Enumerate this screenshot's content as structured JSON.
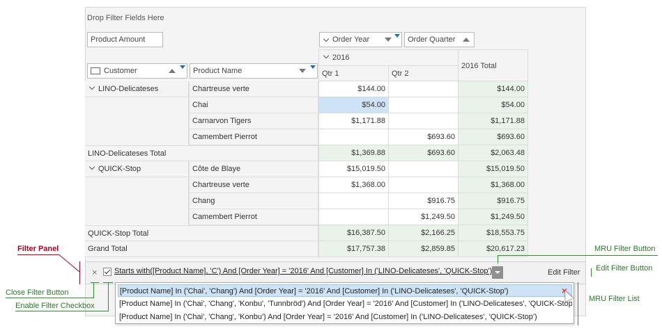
{
  "header_area": {
    "drop_filter_text": "Drop Filter Fields Here",
    "data_field": "Product Amount",
    "column_fields": [
      "Order Year",
      "Order Quarter"
    ],
    "row_fields": [
      "Customer",
      "Product Name"
    ]
  },
  "columns": {
    "year": "2016",
    "quarters": [
      "Qtr 1",
      "Qtr 2"
    ],
    "year_total": "2016 Total"
  },
  "rows": [
    {
      "customer": "LINO-Delicateses",
      "product": "Chartreuse verte",
      "q1": "$144.00",
      "q2": "",
      "total": "$144.00"
    },
    {
      "customer": "",
      "product": "Chai",
      "q1": "$54.00",
      "q2": "",
      "total": "$54.00"
    },
    {
      "customer": "",
      "product": "Carnarvon Tigers",
      "q1": "$1,171.88",
      "q2": "",
      "total": "$1,171.88"
    },
    {
      "customer": "",
      "product": "Camembert Pierrot",
      "q1": "",
      "q2": "$693.60",
      "total": "$693.60"
    },
    {
      "subtotal": "LINO-Delicateses Total",
      "q1": "$1,369.88",
      "q2": "$693.60",
      "total": "$2,063.48"
    },
    {
      "customer": "QUICK-Stop",
      "product": "Côte de Blaye",
      "q1": "$15,019.50",
      "q2": "",
      "total": "$15,019.50"
    },
    {
      "customer": "",
      "product": "Chartreuse verte",
      "q1": "$1,368.00",
      "q2": "",
      "total": "$1,368.00"
    },
    {
      "customer": "",
      "product": "Chang",
      "q1": "",
      "q2": "$916.75",
      "total": "$916.75"
    },
    {
      "customer": "",
      "product": "Camembert Pierrot",
      "q1": "",
      "q2": "$1,249.50",
      "total": "$1,249.50"
    },
    {
      "subtotal": "QUICK-Stop Total",
      "q1": "$16,387.50",
      "q2": "$2,166.25",
      "total": "$18,553.75"
    },
    {
      "subtotal": "Grand Total",
      "q1": "$17,757.38",
      "q2": "$2,859.85",
      "total": "$20,617.23"
    }
  ],
  "filter_panel": {
    "close_glyph": "×",
    "filter_text": "Starts with([Product Name], 'C') And [Order Year] = '2016' And [Customer] In ('LINO-Delicateses', 'QUICK-Stop')",
    "edit_filter": "Edit Filter"
  },
  "mru_list": [
    "[Product Name] In ('Chai', 'Chang') And [Order Year] = '2016' And [Customer] In ('LINO-Delicateses', 'QUICK-Stop')",
    "[Product Name] In ('Chai', 'Chang', 'Konbu', 'Tunnbröd') And [Order Year] = '2016' And [Customer] In ('LINO-Delicateses', 'QUICK-Stop')",
    "[Product Name] In ('Chai', 'Chang', 'Konbu') And [Order Year] = '2016' And [Customer] In ('LINO-Delicateses', 'QUICK-Stop')"
  ],
  "mru_delete_glyph": "×",
  "callouts": {
    "filter_panel": "Filter Panel",
    "mru_filter_button": "MRU Filter Button",
    "edit_filter_button": "Edit Filter Button",
    "close_filter_button": "Close Filter Button",
    "enable_filter_checkbox": "Enable Filter Checkbox",
    "mru_filter_list": "MRU Filter List"
  },
  "colors": {
    "total_bg": "#eaf3ea",
    "selected_bg": "#cfe3f7",
    "callout_red": "#b00020",
    "callout_green": "#2a7a2a"
  }
}
